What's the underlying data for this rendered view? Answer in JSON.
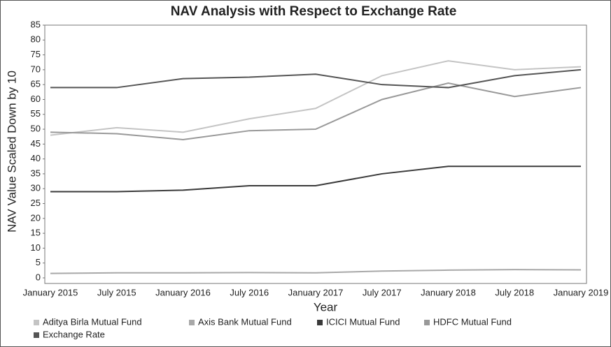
{
  "chart_data": {
    "type": "line",
    "title": "NAV Analysis with Respect to Exchange Rate",
    "xlabel": "Year",
    "ylabel": "NAV Value Scaled Down by 10",
    "categories": [
      "January 2015",
      "July 2015",
      "January 2016",
      "July 2016",
      "January 2017",
      "July 2017",
      "January 2018",
      "July 2018",
      "January 2019"
    ],
    "ylim": [
      0,
      85
    ],
    "yticks": [
      0,
      5,
      10,
      15,
      20,
      25,
      30,
      35,
      40,
      45,
      50,
      55,
      60,
      65,
      70,
      75,
      80,
      85
    ],
    "series": [
      {
        "name": "Aditya Birla Mutual Fund",
        "color": "#c4c4c4",
        "values": [
          48,
          50.5,
          49,
          53.5,
          57,
          68,
          73,
          70,
          71
        ]
      },
      {
        "name": "Axis Bank Mutual Fund",
        "color": "#a8a8a8",
        "values": [
          1.5,
          1.7,
          1.7,
          1.8,
          1.7,
          2.3,
          2.6,
          2.8,
          2.7
        ]
      },
      {
        "name": "ICICI Mutual Fund",
        "color": "#3a3a3a",
        "values": [
          29,
          29,
          29.5,
          31,
          31,
          35,
          37.5,
          37.5,
          37.5
        ]
      },
      {
        "name": "HDFC Mutual Fund",
        "color": "#999999",
        "values": [
          49,
          48.5,
          46.5,
          49.5,
          50,
          60,
          65.5,
          61,
          64
        ]
      },
      {
        "name": "Exchange Rate",
        "color": "#555555",
        "values": [
          64,
          64,
          67,
          67.5,
          68.5,
          65,
          64,
          68,
          70
        ]
      }
    ]
  }
}
